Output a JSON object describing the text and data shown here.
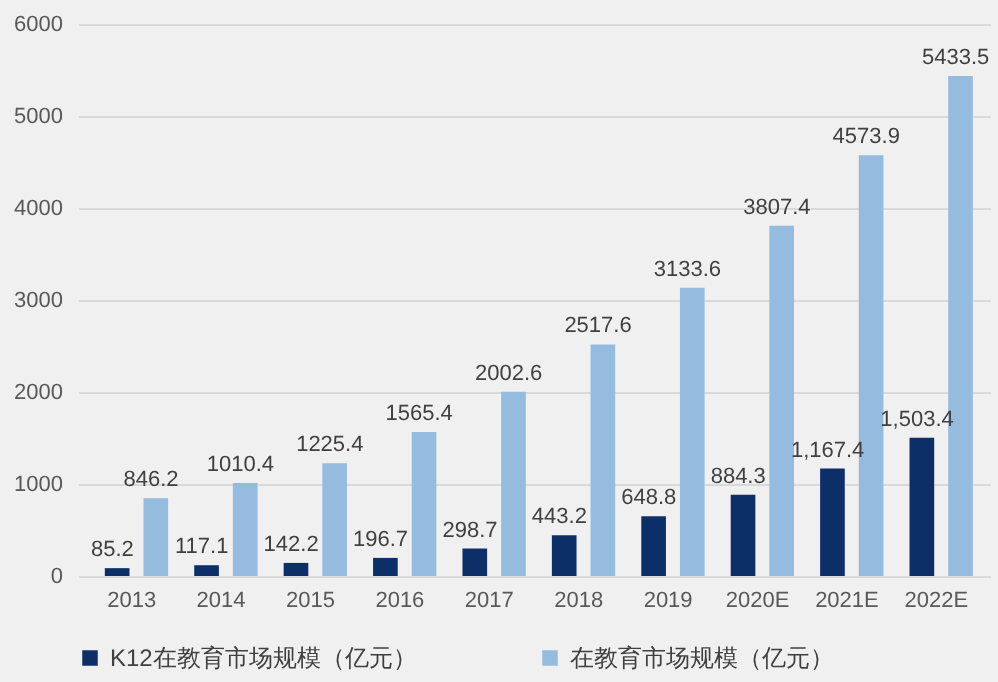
{
  "chart_data": {
    "type": "bar",
    "categories": [
      "2013",
      "2014",
      "2015",
      "2016",
      "2017",
      "2018",
      "2019",
      "2020E",
      "2021E",
      "2022E"
    ],
    "series": [
      {
        "name": "K12在教育市场规模（亿元）",
        "color": "#0b2f66",
        "values": [
          85.2,
          117.1,
          142.2,
          196.7,
          298.7,
          443.2,
          648.8,
          884.3,
          1167.4,
          1503.4
        ],
        "value_labels": [
          "85.2",
          "117.1",
          "142.2",
          "196.7",
          "298.7",
          "443.2",
          "648.8",
          "884.3",
          "1,167.4",
          "1,503.4"
        ]
      },
      {
        "name": "在教育市场规模（亿元）",
        "color": "#95bbdf",
        "values": [
          846.2,
          1010.4,
          1225.4,
          1565.4,
          2002.6,
          2517.6,
          3133.6,
          3807.4,
          4573.9,
          5433.5
        ],
        "value_labels": [
          "846.2",
          "1010.4",
          "1225.4",
          "1565.4",
          "2002.6",
          "2517.6",
          "3133.6",
          "3807.4",
          "4573.9",
          "5433.5"
        ]
      }
    ],
    "ylim": [
      0,
      6000
    ],
    "yticks": [
      0,
      1000,
      2000,
      3000,
      4000,
      5000,
      6000
    ],
    "grid": "y",
    "legend": "bottom"
  }
}
